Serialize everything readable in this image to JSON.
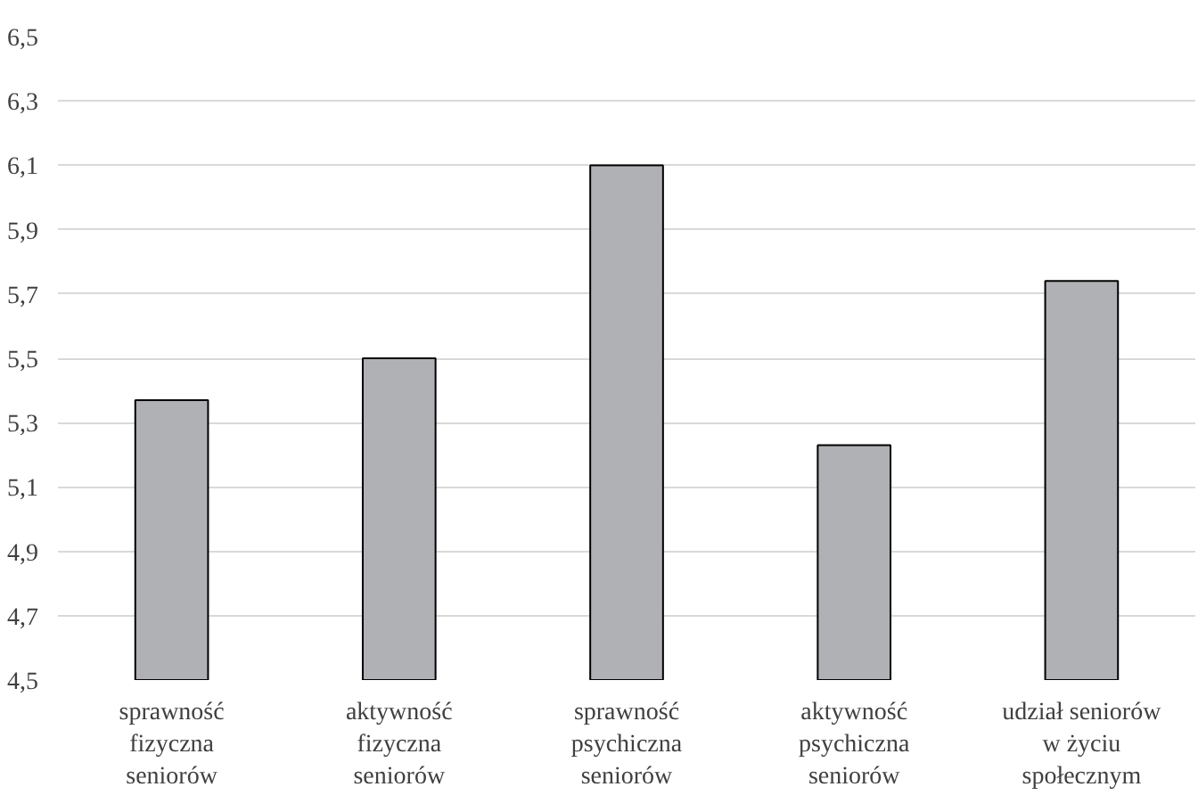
{
  "chart_data": {
    "type": "bar",
    "categories": [
      "sprawność fizyczna seniorów",
      "aktywność fizyczna seniorów",
      "sprawność psychiczna seniorów",
      "aktywność psychiczna seniorów",
      "udział seniorów w życiu społecznym"
    ],
    "values": [
      5.37,
      5.5,
      6.1,
      5.23,
      5.74
    ],
    "color": "#b0b1b5",
    "ylim": [
      4.5,
      6.5
    ],
    "yticks": [
      {
        "value": 4.5,
        "label": "4,5"
      },
      {
        "value": 4.7,
        "label": "4,7"
      },
      {
        "value": 4.9,
        "label": "4,9"
      },
      {
        "value": 5.1,
        "label": "5,1"
      },
      {
        "value": 5.3,
        "label": "5,3"
      },
      {
        "value": 5.5,
        "label": "5,5"
      },
      {
        "value": 5.7,
        "label": "5,7"
      },
      {
        "value": 5.9,
        "label": "5,9"
      },
      {
        "value": 6.1,
        "label": "6,1"
      },
      {
        "value": 6.3,
        "label": "6,3"
      },
      {
        "value": 6.5,
        "label": "6,5"
      }
    ],
    "grid": "y"
  }
}
